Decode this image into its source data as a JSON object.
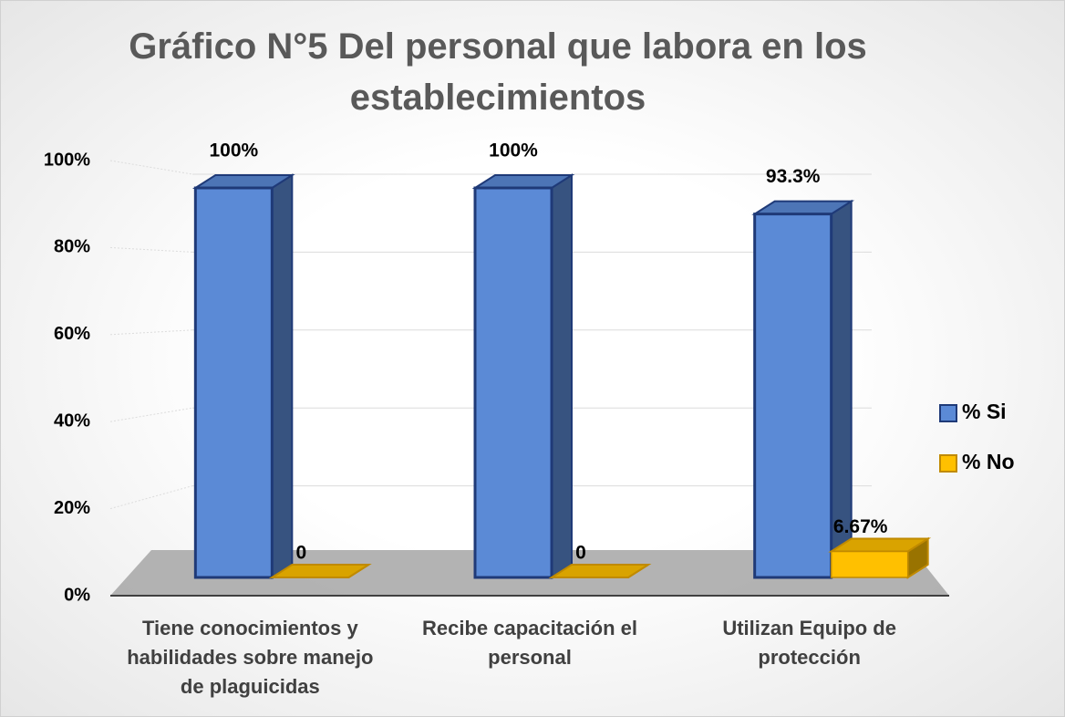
{
  "chart_data": {
    "type": "bar3d",
    "title": "Gráfico N°5 Del personal que labora en los establecimientos",
    "categories": [
      "Tiene conocimientos y habilidades sobre manejo de plaguicidas",
      "Recibe capacitación el personal",
      "Utilizan Equipo de protección"
    ],
    "series": [
      {
        "name": "% Si",
        "color": "#5b8ad6",
        "values": [
          100,
          100,
          93.3
        ],
        "value_labels": [
          "100%",
          "100%",
          "93.3%"
        ]
      },
      {
        "name": "% No",
        "color": "#ffc000",
        "values": [
          0,
          0,
          6.67
        ],
        "value_labels": [
          "0",
          "0",
          "6.67%"
        ]
      }
    ],
    "ylim": [
      0,
      100
    ],
    "yticks": [
      {
        "value": 0,
        "label": "0%"
      },
      {
        "value": 20,
        "label": "20%"
      },
      {
        "value": 40,
        "label": "40%"
      },
      {
        "value": 60,
        "label": "60%"
      },
      {
        "value": 80,
        "label": "80%"
      },
      {
        "value": 100,
        "label": "100%"
      }
    ],
    "grid": true,
    "legend": "right"
  }
}
